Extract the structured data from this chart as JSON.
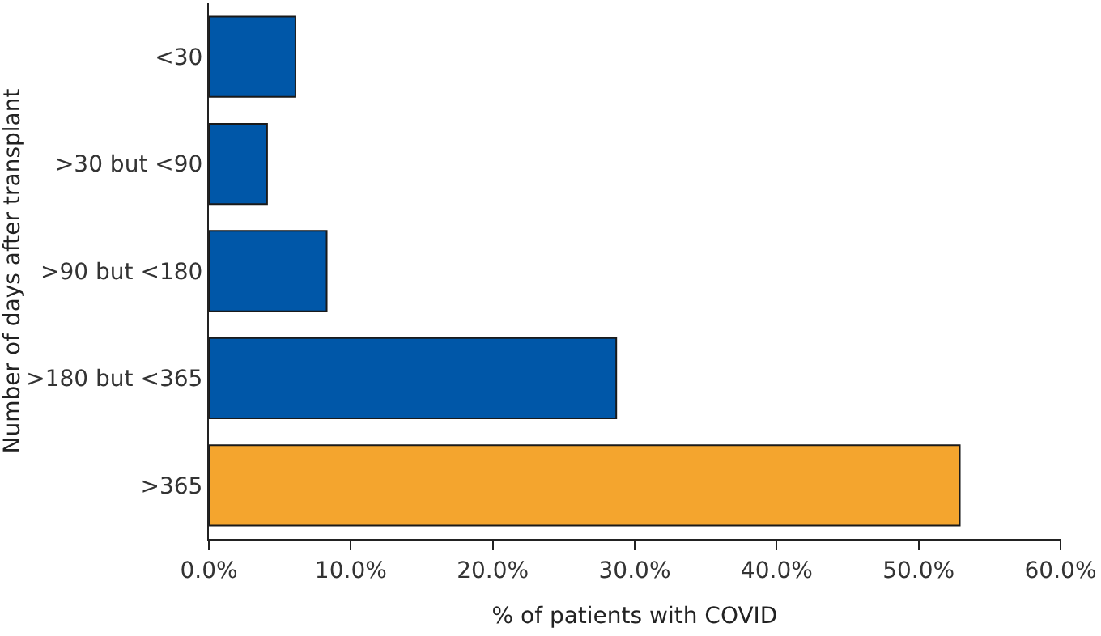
{
  "chart_data": {
    "type": "bar",
    "orientation": "horizontal",
    "xlabel": "% of patients with COVID",
    "ylabel": "Number of days after transplant",
    "categories": [
      "<30",
      ">30 but <90",
      ">90 but <180",
      ">180 but <365",
      ">365"
    ],
    "values": [
      6.1,
      4.1,
      8.3,
      28.7,
      52.9
    ],
    "colors": [
      "#0057a8",
      "#0057a8",
      "#0057a8",
      "#0057a8",
      "#f4a52e"
    ],
    "xlim": [
      0,
      60
    ],
    "xticks": [
      {
        "value": 0,
        "label": "0.0%"
      },
      {
        "value": 10,
        "label": "10.0%"
      },
      {
        "value": 20,
        "label": "20.0%"
      },
      {
        "value": 30,
        "label": "30.0%"
      },
      {
        "value": 40,
        "label": "40.0%"
      },
      {
        "value": 50,
        "label": "50.0%"
      },
      {
        "value": 60,
        "label": "60.0%"
      }
    ],
    "grid": false
  }
}
